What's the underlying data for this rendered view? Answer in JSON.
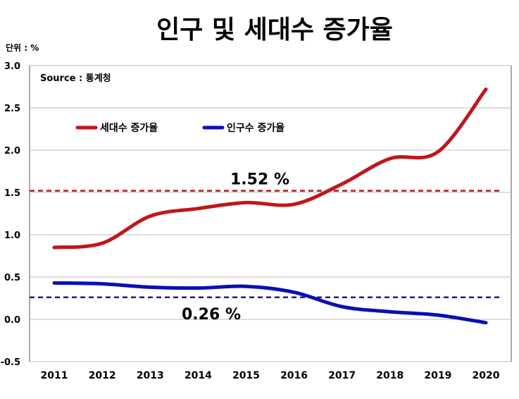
{
  "chart_data": {
    "type": "line",
    "title": "인구 및 세대수 증가율",
    "unit_label": "단위 : %",
    "source": "Source : 통계청",
    "x": [
      "2011",
      "2012",
      "2013",
      "2014",
      "2015",
      "2016",
      "2017",
      "2018",
      "2019",
      "2020"
    ],
    "ylim": [
      -0.5,
      3.0
    ],
    "yticks": [
      "3.0",
      "2.5",
      "2.0",
      "1.5",
      "1.0",
      "0.5",
      "0.0",
      "-0.5"
    ],
    "ytick_values": [
      3.0,
      2.5,
      2.0,
      1.5,
      1.0,
      0.5,
      0.0,
      -0.5
    ],
    "grid": true,
    "legend_position": "top-left",
    "series": [
      {
        "name": "세대수 증가율",
        "color": "#c0161b",
        "values": [
          0.85,
          0.9,
          1.22,
          1.31,
          1.38,
          1.36,
          1.6,
          1.9,
          1.98,
          2.72
        ]
      },
      {
        "name": "인구수 증가율",
        "color": "#0a0fb5",
        "values": [
          0.43,
          0.42,
          0.38,
          0.37,
          0.39,
          0.32,
          0.15,
          0.09,
          0.05,
          -0.04
        ]
      }
    ],
    "reference_lines": [
      {
        "value": 1.52,
        "label": "1.52 %",
        "color": "#b01818"
      },
      {
        "value": 0.26,
        "label": "0.26 %",
        "color": "#1a1aa0"
      }
    ]
  }
}
